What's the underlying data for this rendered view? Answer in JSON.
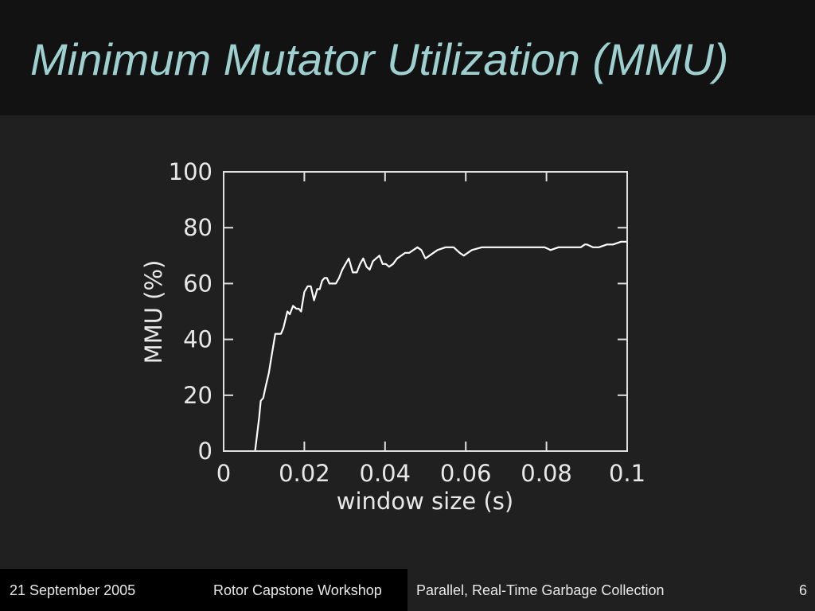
{
  "slide": {
    "title": "Minimum Mutator Utilization (MMU)"
  },
  "footer": {
    "date": "21 September 2005",
    "event": "Rotor Capstone Workshop",
    "talk": "Parallel, Real-Time Garbage Collection",
    "page": "6"
  },
  "colors": {
    "background": "#202020",
    "title_bar": "#121212",
    "title_text": "#9fd0d0",
    "line": "#ffffff"
  },
  "chart_data": {
    "type": "line",
    "xlabel": "window size (s)",
    "ylabel": "MMU (%)",
    "xlim": [
      0,
      0.1
    ],
    "ylim": [
      0,
      100
    ],
    "xticks": [
      0,
      0.02,
      0.04,
      0.06,
      0.08,
      0.1
    ],
    "xtick_labels": [
      "0",
      "0.02",
      "0.04",
      "0.06",
      "0.08",
      "0.1"
    ],
    "yticks": [
      0,
      20,
      40,
      60,
      80,
      100
    ],
    "ytick_labels": [
      "0",
      "20",
      "40",
      "60",
      "80",
      "100"
    ],
    "grid": false,
    "legend": false,
    "series": [
      {
        "x": [
          0.0078,
          0.0088,
          0.0092,
          0.0098,
          0.0104,
          0.0112,
          0.012,
          0.0128,
          0.0136,
          0.0142,
          0.0148,
          0.0158,
          0.0164,
          0.0172,
          0.018,
          0.0186,
          0.0192,
          0.02,
          0.0208,
          0.0216,
          0.0224,
          0.0232,
          0.0238,
          0.0244,
          0.025,
          0.0256,
          0.0262,
          0.027,
          0.0278,
          0.0286,
          0.0294,
          0.0302,
          0.031,
          0.032,
          0.033,
          0.0338,
          0.0346,
          0.0354,
          0.0362,
          0.037,
          0.0378,
          0.0386,
          0.0394,
          0.0402,
          0.041,
          0.042,
          0.043,
          0.044,
          0.045,
          0.046,
          0.047,
          0.048,
          0.049,
          0.05,
          0.051,
          0.052,
          0.053,
          0.055,
          0.057,
          0.0585,
          0.0595,
          0.0605,
          0.0615,
          0.064,
          0.068,
          0.072,
          0.076,
          0.0795,
          0.081,
          0.083,
          0.086,
          0.0885,
          0.0895,
          0.09,
          0.0915,
          0.093,
          0.095,
          0.0965,
          0.0985
        ],
        "y": [
          0,
          12,
          18,
          19,
          23,
          28,
          35,
          42,
          42,
          42,
          44,
          50,
          49,
          52,
          51,
          51,
          50,
          57,
          59,
          59,
          54,
          58,
          58,
          61,
          62,
          62,
          60,
          60,
          60,
          62,
          65,
          67,
          69,
          64,
          64,
          67,
          69,
          66,
          65,
          68,
          69,
          70,
          67,
          67,
          66,
          67,
          69,
          70,
          71,
          71,
          72,
          73,
          72,
          69,
          70,
          71,
          72,
          73,
          73,
          71,
          70,
          71,
          72,
          73,
          73,
          73,
          73,
          73,
          72,
          73,
          73,
          73,
          74,
          74,
          73,
          73,
          74,
          74,
          75
        ]
      }
    ]
  }
}
